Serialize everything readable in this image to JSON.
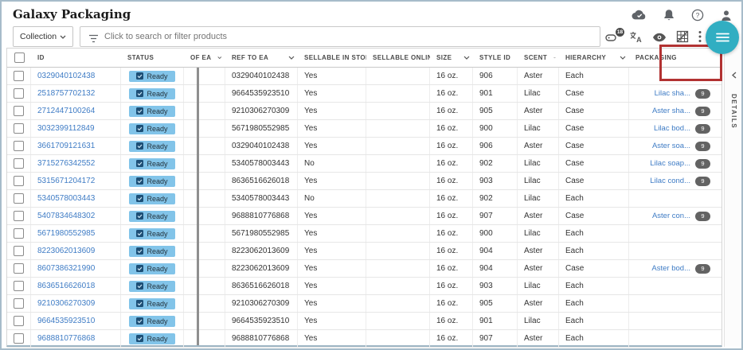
{
  "header": {
    "title": "Galaxy Packaging",
    "icons": [
      "cloud-sync-icon",
      "notifications-icon",
      "help-icon",
      "account-icon"
    ]
  },
  "toolbar": {
    "collection_label": "Collection",
    "search_placeholder": "Click to search or filter products",
    "tag_badge_count": "18",
    "icons": [
      "tag-icon",
      "translate-icon",
      "visibility-icon",
      "grid-off-icon",
      "more-vertical-icon"
    ],
    "fab_icon": "menu-icon"
  },
  "side_panel": {
    "label": "DETAILS",
    "collapse_icon": "chevron-left-icon"
  },
  "annotation": {
    "target": "packaging-column-header",
    "color": "#b23232"
  },
  "colors": {
    "accent_teal": "#31aec2",
    "status_badge_bg": "#82c4e9",
    "link_blue": "#3f7cc5",
    "count_pill_bg": "#636363",
    "annotation_red": "#b23232"
  },
  "table": {
    "columns": [
      {
        "key": "select",
        "label": "",
        "type": "checkbox",
        "sortable": false
      },
      {
        "key": "id",
        "label": "ID",
        "sortable": false
      },
      {
        "key": "status",
        "label": "STATUS",
        "sortable": false
      },
      {
        "key": "of_ea",
        "label": "OF EA",
        "sortable": true
      },
      {
        "key": "ref_to_ea",
        "label": "REF TO EA",
        "sortable": true
      },
      {
        "key": "sellable_in_store",
        "label": "SELLABLE IN STORE",
        "sortable": true
      },
      {
        "key": "sellable_online",
        "label": "SELLABLE ONLINE",
        "sortable": true
      },
      {
        "key": "size",
        "label": "SIZE",
        "sortable": true
      },
      {
        "key": "style_id",
        "label": "STYLE ID",
        "sortable": true
      },
      {
        "key": "scent",
        "label": "SCENT",
        "sortable": true
      },
      {
        "key": "hierarchy",
        "label": "HIERARCHY",
        "sortable": true
      },
      {
        "key": "packaging",
        "label": "PACKAGING",
        "sortable": false
      }
    ],
    "status_label": "Ready",
    "rows": [
      {
        "id": "0329040102438",
        "status": "Ready",
        "of_ea": "",
        "ref_to_ea": "0329040102438",
        "sellable_in_store": "Yes",
        "sellable_online": "",
        "size": "16 oz.",
        "style_id": "906",
        "scent": "Aster",
        "hierarchy": "Each",
        "packaging": "",
        "packaging_count": ""
      },
      {
        "id": "2518757702132",
        "status": "Ready",
        "of_ea": "",
        "ref_to_ea": "9664535923510",
        "sellable_in_store": "Yes",
        "sellable_online": "",
        "size": "16 oz.",
        "style_id": "901",
        "scent": "Lilac",
        "hierarchy": "Case",
        "packaging": "Lilac sha...",
        "packaging_count": "9"
      },
      {
        "id": "2712447100264",
        "status": "Ready",
        "of_ea": "",
        "ref_to_ea": "9210306270309",
        "sellable_in_store": "Yes",
        "sellable_online": "",
        "size": "16 oz.",
        "style_id": "905",
        "scent": "Aster",
        "hierarchy": "Case",
        "packaging": "Aster sha...",
        "packaging_count": "9"
      },
      {
        "id": "3032399112849",
        "status": "Ready",
        "of_ea": "",
        "ref_to_ea": "5671980552985",
        "sellable_in_store": "Yes",
        "sellable_online": "",
        "size": "16 oz.",
        "style_id": "900",
        "scent": "Lilac",
        "hierarchy": "Case",
        "packaging": "Lilac bod...",
        "packaging_count": "9"
      },
      {
        "id": "3661709121631",
        "status": "Ready",
        "of_ea": "",
        "ref_to_ea": "0329040102438",
        "sellable_in_store": "Yes",
        "sellable_online": "",
        "size": "16 oz.",
        "style_id": "906",
        "scent": "Aster",
        "hierarchy": "Case",
        "packaging": "Aster soa...",
        "packaging_count": "9"
      },
      {
        "id": "3715276342552",
        "status": "Ready",
        "of_ea": "",
        "ref_to_ea": "5340578003443",
        "sellable_in_store": "No",
        "sellable_online": "",
        "size": "16 oz.",
        "style_id": "902",
        "scent": "Lilac",
        "hierarchy": "Case",
        "packaging": "Lilac soap...",
        "packaging_count": "9"
      },
      {
        "id": "5315671204172",
        "status": "Ready",
        "of_ea": "",
        "ref_to_ea": "8636516626018",
        "sellable_in_store": "Yes",
        "sellable_online": "",
        "size": "16 oz.",
        "style_id": "903",
        "scent": "Lilac",
        "hierarchy": "Case",
        "packaging": "Lilac cond...",
        "packaging_count": "9"
      },
      {
        "id": "5340578003443",
        "status": "Ready",
        "of_ea": "",
        "ref_to_ea": "5340578003443",
        "sellable_in_store": "No",
        "sellable_online": "",
        "size": "16 oz.",
        "style_id": "902",
        "scent": "Lilac",
        "hierarchy": "Each",
        "packaging": "",
        "packaging_count": ""
      },
      {
        "id": "5407834648302",
        "status": "Ready",
        "of_ea": "",
        "ref_to_ea": "9688810776868",
        "sellable_in_store": "Yes",
        "sellable_online": "",
        "size": "16 oz.",
        "style_id": "907",
        "scent": "Aster",
        "hierarchy": "Case",
        "packaging": "Aster con...",
        "packaging_count": "9"
      },
      {
        "id": "5671980552985",
        "status": "Ready",
        "of_ea": "",
        "ref_to_ea": "5671980552985",
        "sellable_in_store": "Yes",
        "sellable_online": "",
        "size": "16 oz.",
        "style_id": "900",
        "scent": "Lilac",
        "hierarchy": "Each",
        "packaging": "",
        "packaging_count": ""
      },
      {
        "id": "8223062013609",
        "status": "Ready",
        "of_ea": "",
        "ref_to_ea": "8223062013609",
        "sellable_in_store": "Yes",
        "sellable_online": "",
        "size": "16 oz.",
        "style_id": "904",
        "scent": "Aster",
        "hierarchy": "Each",
        "packaging": "",
        "packaging_count": ""
      },
      {
        "id": "8607386321990",
        "status": "Ready",
        "of_ea": "",
        "ref_to_ea": "8223062013609",
        "sellable_in_store": "Yes",
        "sellable_online": "",
        "size": "16 oz.",
        "style_id": "904",
        "scent": "Aster",
        "hierarchy": "Case",
        "packaging": "Aster bod...",
        "packaging_count": "9"
      },
      {
        "id": "8636516626018",
        "status": "Ready",
        "of_ea": "",
        "ref_to_ea": "8636516626018",
        "sellable_in_store": "Yes",
        "sellable_online": "",
        "size": "16 oz.",
        "style_id": "903",
        "scent": "Lilac",
        "hierarchy": "Each",
        "packaging": "",
        "packaging_count": ""
      },
      {
        "id": "9210306270309",
        "status": "Ready",
        "of_ea": "",
        "ref_to_ea": "9210306270309",
        "sellable_in_store": "Yes",
        "sellable_online": "",
        "size": "16 oz.",
        "style_id": "905",
        "scent": "Aster",
        "hierarchy": "Each",
        "packaging": "",
        "packaging_count": ""
      },
      {
        "id": "9664535923510",
        "status": "Ready",
        "of_ea": "",
        "ref_to_ea": "9664535923510",
        "sellable_in_store": "Yes",
        "sellable_online": "",
        "size": "16 oz.",
        "style_id": "901",
        "scent": "Lilac",
        "hierarchy": "Each",
        "packaging": "",
        "packaging_count": ""
      },
      {
        "id": "9688810776868",
        "status": "Ready",
        "of_ea": "",
        "ref_to_ea": "9688810776868",
        "sellable_in_store": "Yes",
        "sellable_online": "",
        "size": "16 oz.",
        "style_id": "907",
        "scent": "Aster",
        "hierarchy": "Each",
        "packaging": "",
        "packaging_count": ""
      }
    ]
  }
}
